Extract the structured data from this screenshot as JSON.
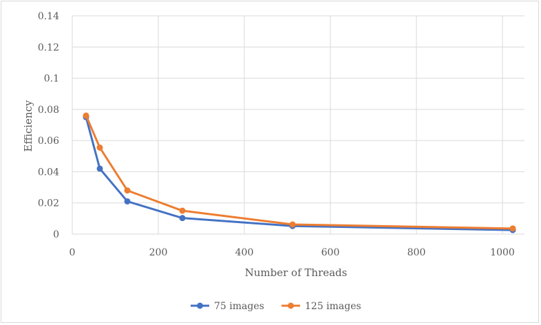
{
  "chart_data": {
    "type": "line",
    "title": "",
    "xlabel": "Number of Threads",
    "ylabel": "Efficiency",
    "xlim": [
      0,
      1050
    ],
    "ylim": [
      0,
      0.14
    ],
    "x_ticks": [
      "0",
      "200",
      "400",
      "600",
      "800",
      "1000"
    ],
    "y_ticks": [
      "0",
      "0.02",
      "0.04",
      "0.06",
      "0.08",
      "0.1",
      "0.12",
      "0.14"
    ],
    "grid": true,
    "legend_position": "bottom",
    "series": [
      {
        "name": "75 images",
        "color": "#4472c4",
        "x": [
          32,
          64,
          128,
          256,
          512,
          1024
        ],
        "values": [
          0.075,
          0.042,
          0.021,
          0.0103,
          0.0052,
          0.0026
        ]
      },
      {
        "name": "125 images",
        "color": "#ed7d31",
        "x": [
          32,
          64,
          128,
          256,
          512,
          1024
        ],
        "values": [
          0.076,
          0.0555,
          0.028,
          0.015,
          0.0062,
          0.0036
        ]
      }
    ]
  }
}
